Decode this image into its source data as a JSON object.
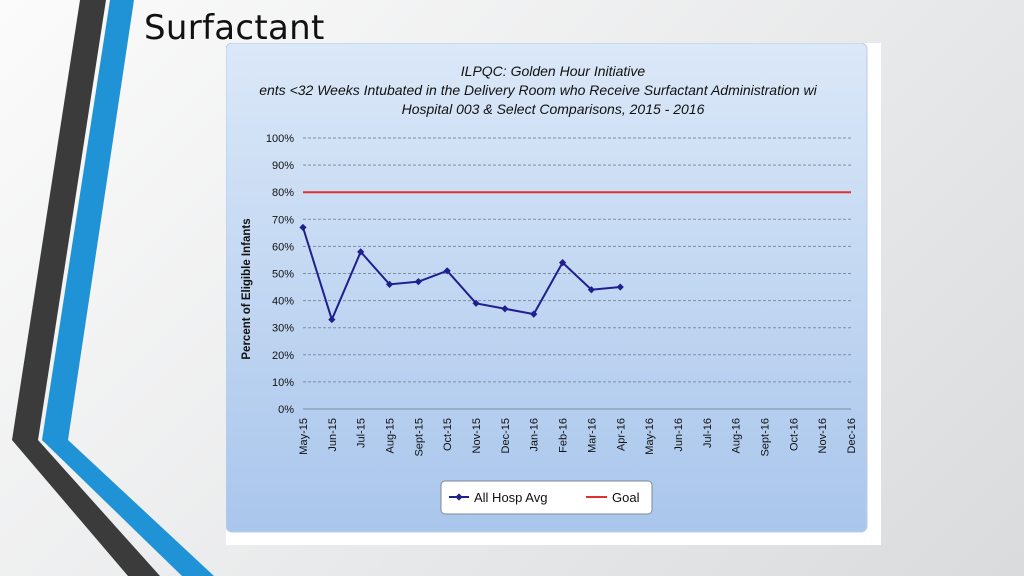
{
  "slide": {
    "title": "Surfactant"
  },
  "colors": {
    "plot_background_top": "#dbe8f8",
    "plot_background_bottom": "#a9c6ec",
    "series_line": "#1f1f8f",
    "goal_line": "#e03030",
    "stripe_dark": "#3b3b3b",
    "stripe_blue": "#1f93d6"
  },
  "chart_data": {
    "type": "line",
    "title_lines": [
      "ILPQC: Golden Hour Initiative",
      "ents <32 Weeks Intubated in the Delivery Room who Receive Surfactant Administration wi",
      "Hospital 003 & Select Comparisons, 2015 - 2016"
    ],
    "ylabel": "Percent of Eligible Infants",
    "xlabel": "",
    "ylim": [
      0,
      100
    ],
    "yticks": [
      0,
      10,
      20,
      30,
      40,
      50,
      60,
      70,
      80,
      90,
      100
    ],
    "ytick_labels": [
      "0%",
      "10%",
      "20%",
      "30%",
      "40%",
      "50%",
      "60%",
      "70%",
      "80%",
      "90%",
      "100%"
    ],
    "grid": true,
    "categories": [
      "May-15",
      "Jun-15",
      "Jul-15",
      "Aug-15",
      "Sept-15",
      "Oct-15",
      "Nov-15",
      "Dec-15",
      "Jan-16",
      "Feb-16",
      "Mar-16",
      "Apr-16",
      "May-16",
      "Jun-16",
      "Jul-16",
      "Aug-16",
      "Sept-16",
      "Oct-16",
      "Nov-16",
      "Dec-16"
    ],
    "series": [
      {
        "name": "All Hosp Avg",
        "style": "line-with-diamond-markers",
        "values": [
          67,
          33,
          58,
          46,
          47,
          51,
          39,
          37,
          35,
          54,
          44,
          45,
          null,
          null,
          null,
          null,
          null,
          null,
          null,
          null
        ]
      },
      {
        "name": "Goal",
        "style": "line",
        "values": [
          80,
          80,
          80,
          80,
          80,
          80,
          80,
          80,
          80,
          80,
          80,
          80,
          80,
          80,
          80,
          80,
          80,
          80,
          80,
          80
        ]
      }
    ],
    "legend_position": "bottom-center"
  }
}
